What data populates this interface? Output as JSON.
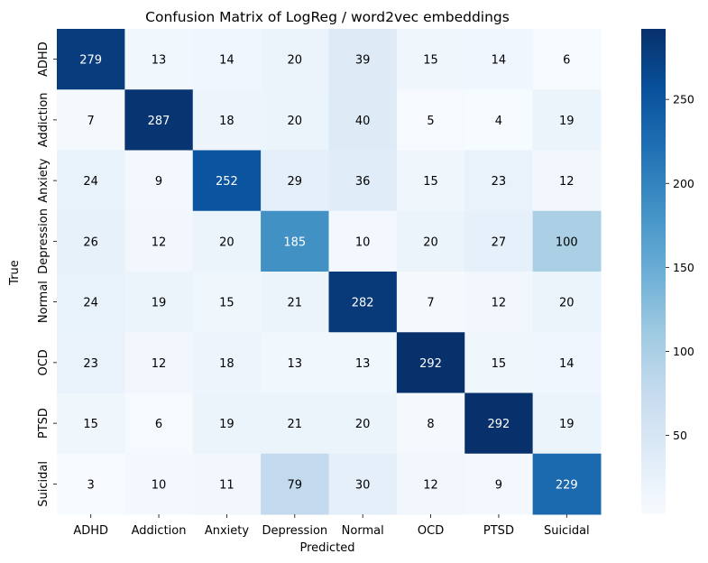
{
  "chart_data": {
    "type": "heatmap",
    "title": "Confusion Matrix of LogReg / word2vec embeddings",
    "xlabel": "Predicted",
    "ylabel": "True",
    "x_categories": [
      "ADHD",
      "Addiction",
      "Anxiety",
      "Depression",
      "Normal",
      "OCD",
      "PTSD",
      "Suicidal"
    ],
    "y_categories": [
      "ADHD",
      "Addiction",
      "Anxiety",
      "Depression",
      "Normal",
      "OCD",
      "PTSD",
      "Suicidal"
    ],
    "values": [
      [
        279,
        13,
        14,
        20,
        39,
        15,
        14,
        6
      ],
      [
        7,
        287,
        18,
        20,
        40,
        5,
        4,
        19
      ],
      [
        24,
        9,
        252,
        29,
        36,
        15,
        23,
        12
      ],
      [
        26,
        12,
        20,
        185,
        10,
        20,
        27,
        100
      ],
      [
        24,
        19,
        15,
        21,
        282,
        7,
        12,
        20
      ],
      [
        23,
        12,
        18,
        13,
        13,
        292,
        15,
        14
      ],
      [
        15,
        6,
        19,
        21,
        20,
        8,
        292,
        19
      ],
      [
        3,
        10,
        11,
        79,
        30,
        12,
        9,
        229
      ]
    ],
    "colorbar": {
      "min": 3,
      "max": 292,
      "ticks": [
        50,
        100,
        150,
        200,
        250
      ],
      "colormap": "Blues"
    },
    "text_colors": {
      "dark": "#000000",
      "light": "#ffffff"
    }
  }
}
